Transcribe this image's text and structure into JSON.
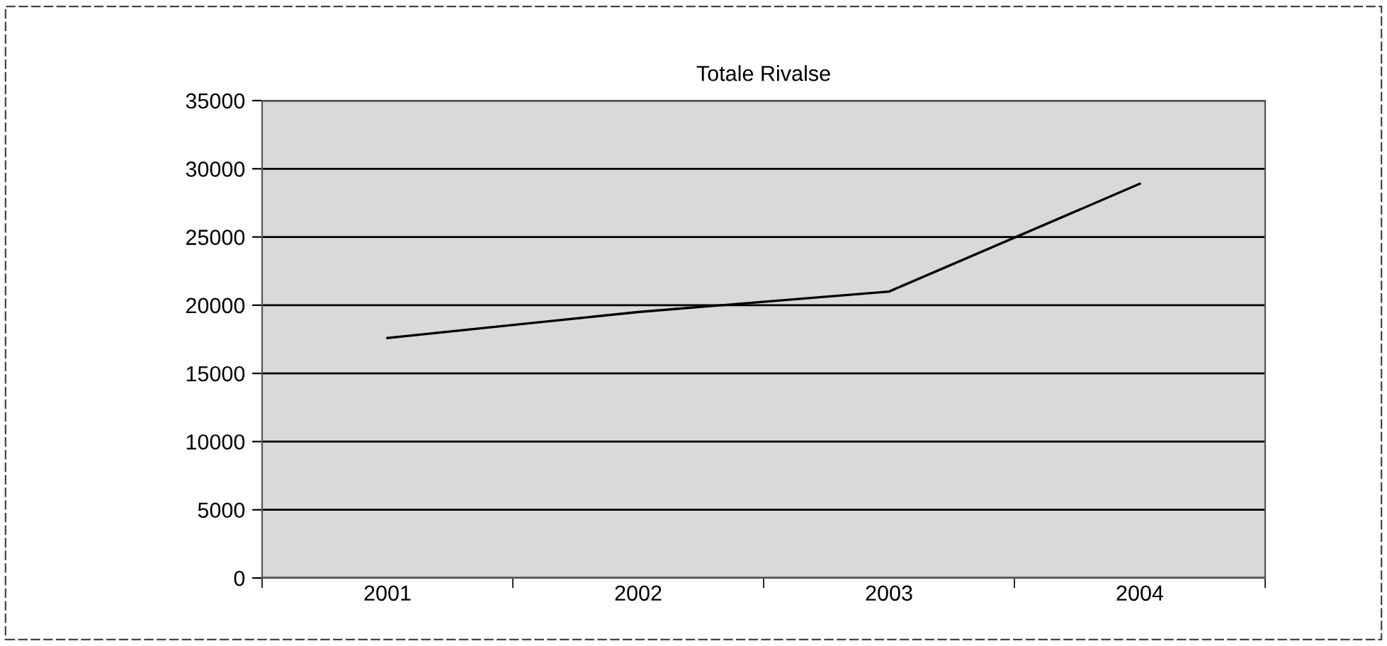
{
  "chart_data": {
    "type": "line",
    "title": "Totale Rivalse",
    "categories": [
      "2001",
      "2002",
      "2003",
      "2004"
    ],
    "series": [
      {
        "color": "#000000",
        "values": [
          17600,
          19500,
          21000,
          28900
        ]
      }
    ],
    "ylim": [
      0,
      35000
    ],
    "yticks": [
      0,
      5000,
      10000,
      15000,
      20000,
      25000,
      30000,
      35000
    ],
    "grid": "y",
    "legend": false,
    "marker": "none",
    "line_style": "solid"
  }
}
